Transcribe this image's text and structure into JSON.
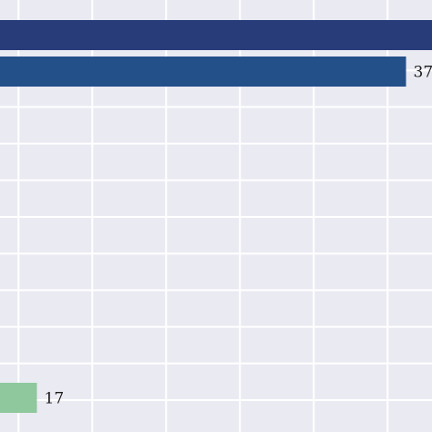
{
  "colors": {
    "background": "#eaeaf2",
    "grid": "#ffffff",
    "bar_dark": "#283c7a",
    "bar_mid": "#24508a",
    "bar_light": "#8ec89c"
  },
  "chart_data": {
    "type": "bar",
    "orientation": "horizontal",
    "grid": true,
    "xlim": [
      15,
      41
    ],
    "bars": [
      {
        "value": 42,
        "color": "#283c7a",
        "label": ""
      },
      {
        "value": 37,
        "color": "#24508a",
        "label": "37"
      },
      {
        "value": 17,
        "color": "#8ec89c",
        "label": "17"
      }
    ]
  }
}
